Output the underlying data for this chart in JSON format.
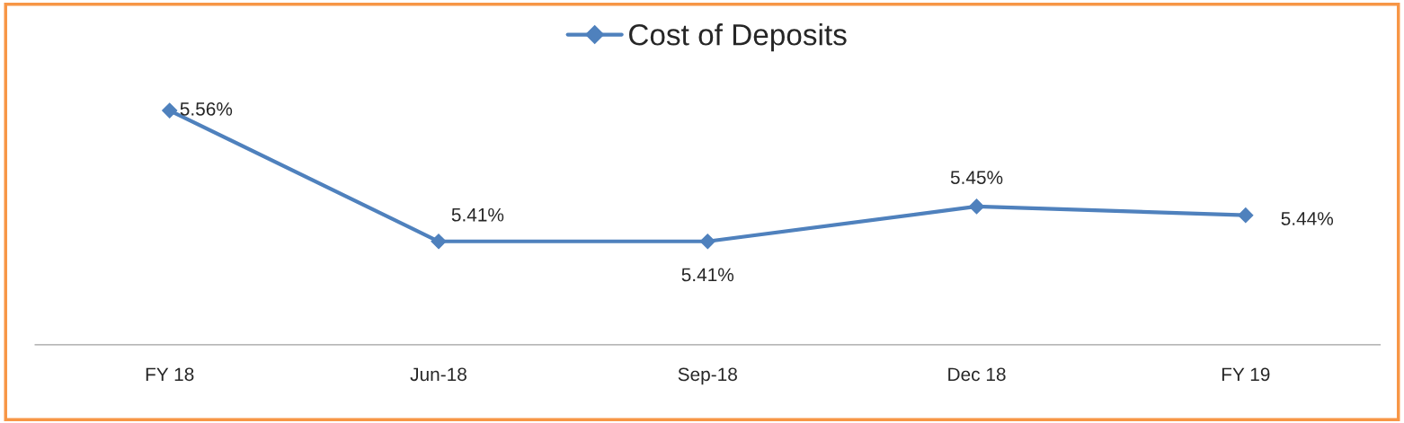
{
  "chart_data": {
    "type": "line",
    "categories": [
      "FY 18",
      "Jun-18",
      "Sep-18",
      "Dec 18",
      "FY 19"
    ],
    "series": [
      {
        "name": "Cost of Deposits",
        "color": "#4f81bd",
        "values": [
          5.56,
          5.41,
          5.41,
          5.45,
          5.44
        ],
        "value_labels": [
          "5.56%",
          "5.41%",
          "5.41%",
          "5.45%",
          "5.44%"
        ]
      }
    ],
    "marker": "diamond",
    "line_style": "solid",
    "legend": "top",
    "grid": false
  }
}
